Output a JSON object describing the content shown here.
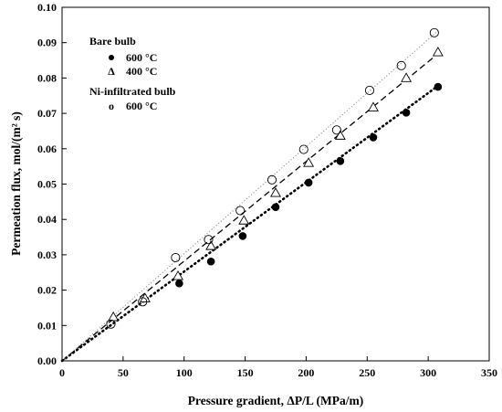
{
  "chart_data": {
    "type": "scatter",
    "xlabel": "Pressure gradient, ΔP/L (MPa/m)",
    "ylabel": "Permeation flux, mol/(m² s)",
    "xlim": [
      0,
      350
    ],
    "ylim": [
      0,
      0.1
    ],
    "xticks": [
      "0",
      "50",
      "100",
      "150",
      "200",
      "250",
      "300",
      "350"
    ],
    "yticks": [
      "0.00",
      "0.01",
      "0.02",
      "0.03",
      "0.04",
      "0.05",
      "0.06",
      "0.07",
      "0.08",
      "0.09",
      "0.10"
    ],
    "grid": false,
    "legend_position": "top-left",
    "legend": {
      "group1_title": "Bare bulb",
      "group2_title": "Ni-infiltrated bulb",
      "entries": [
        {
          "symbol": "•",
          "label": "600 °C"
        },
        {
          "symbol": "Δ",
          "label": "400 °C"
        },
        {
          "symbol": "o",
          "label": "600 °C"
        }
      ]
    },
    "series": [
      {
        "name": "600 °C",
        "group": "Bare bulb",
        "marker": "filled-circle",
        "trendline": "dotted-bold",
        "x": [
          96,
          122,
          148,
          175,
          202,
          228,
          255,
          282,
          308
        ],
        "y": [
          0.0219,
          0.0281,
          0.0353,
          0.0435,
          0.0504,
          0.0565,
          0.0632,
          0.0702,
          0.0775
        ]
      },
      {
        "name": "400 °C",
        "group": "Bare bulb",
        "marker": "open-triangle",
        "trendline": "dashed",
        "x": [
          42,
          68,
          95,
          122,
          149,
          175,
          202,
          228,
          255,
          282,
          308
        ],
        "y": [
          0.0124,
          0.0177,
          0.024,
          0.0325,
          0.0397,
          0.0475,
          0.056,
          0.0637,
          0.0717,
          0.08,
          0.0873
        ]
      },
      {
        "name": "600 °C",
        "group": "Ni-infiltrated bulb",
        "marker": "open-circle",
        "trendline": "dotted-thin",
        "x": [
          40,
          66,
          93,
          120,
          146,
          172,
          198,
          225,
          252,
          278,
          305
        ],
        "y": [
          0.0104,
          0.0167,
          0.0292,
          0.0343,
          0.0425,
          0.0512,
          0.0598,
          0.0653,
          0.0765,
          0.0835,
          0.0928
        ]
      }
    ],
    "trendlines": [
      {
        "series": 0,
        "slope": 0.0002525
      },
      {
        "series": 1,
        "slope": 0.000282
      },
      {
        "series": 2,
        "slope": 0.000303
      }
    ]
  }
}
